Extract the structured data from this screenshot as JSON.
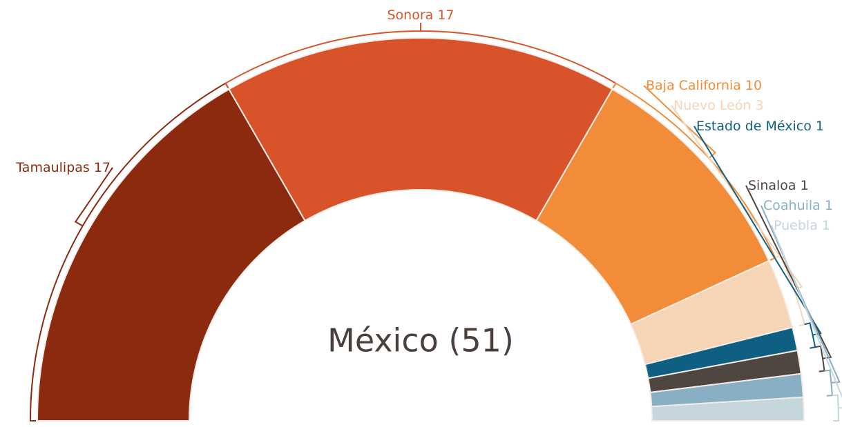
{
  "chart_data": {
    "type": "semi-donut",
    "title": "México (51)",
    "categories": [
      "Tamaulipas",
      "Sonora",
      "Baja California",
      "Nuevo León",
      "Estado de México",
      "Sinaloa",
      "Coahuila",
      "Puebla"
    ],
    "values": [
      17,
      17,
      10,
      3,
      1,
      1,
      1,
      1
    ],
    "colors": [
      "#8b2a0e",
      "#d9532a",
      "#f28c38",
      "#f5d5b5",
      "#0e5f82",
      "#4f4541",
      "#88afc4",
      "#c5d6dc"
    ]
  }
}
